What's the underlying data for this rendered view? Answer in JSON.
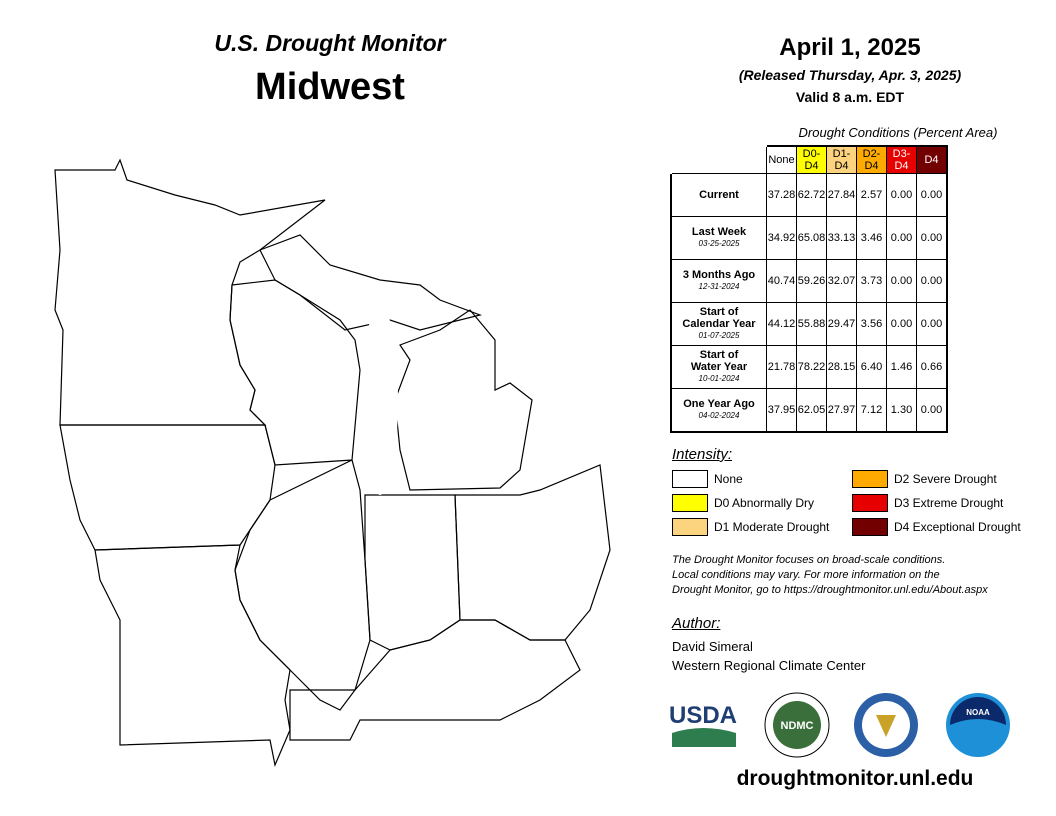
{
  "header": {
    "subtitle": "U.S. Drought Monitor",
    "title": "Midwest"
  },
  "date": {
    "date": "April 1, 2025",
    "released": "(Released Thursday, Apr. 3, 2025)",
    "valid": "Valid 8 a.m. EDT"
  },
  "table": {
    "caption": "Drought Conditions (Percent Area)",
    "columns": [
      {
        "name": "None",
        "color": "#ffffff",
        "text_color": "#000000"
      },
      {
        "name": "D0-D4",
        "color": "#ffff00",
        "text_color": "#000000"
      },
      {
        "name": "D1-D4",
        "color": "#fcd37f",
        "text_color": "#000000"
      },
      {
        "name": "D2-D4",
        "color": "#ffaa00",
        "text_color": "#000000"
      },
      {
        "name": "D3-D4",
        "color": "#e60000",
        "text_color": "#ffffff"
      },
      {
        "name": "D4",
        "color": "#730000",
        "text_color": "#ffffff"
      }
    ],
    "rows": [
      {
        "label": [
          "Current"
        ],
        "values": [
          "37.28",
          "62.72",
          "27.84",
          "2.57",
          "0.00",
          "0.00"
        ]
      },
      {
        "label": [
          "Last Week"
        ],
        "date": "03-25-2025",
        "values": [
          "34.92",
          "65.08",
          "33.13",
          "3.46",
          "0.00",
          "0.00"
        ]
      },
      {
        "label": [
          "3 Months Ago"
        ],
        "date": "12-31-2024",
        "values": [
          "40.74",
          "59.26",
          "32.07",
          "3.73",
          "0.00",
          "0.00"
        ]
      },
      {
        "label": [
          "Start of",
          "Calendar Year"
        ],
        "date": "01-07-2025",
        "values": [
          "44.12",
          "55.88",
          "29.47",
          "3.56",
          "0.00",
          "0.00"
        ]
      },
      {
        "label": [
          "Start of",
          "Water Year"
        ],
        "date": "10-01-2024",
        "values": [
          "21.78",
          "78.22",
          "28.15",
          "6.40",
          "1.46",
          "0.66"
        ]
      },
      {
        "label": [
          "One Year Ago"
        ],
        "date": "04-02-2024",
        "values": [
          "37.95",
          "62.05",
          "27.97",
          "7.12",
          "1.30",
          "0.00"
        ]
      }
    ]
  },
  "legend": {
    "title": "Intensity:",
    "items": [
      {
        "label": "None",
        "color": "#ffffff"
      },
      {
        "label": "D0 Abnormally Dry",
        "color": "#ffff00"
      },
      {
        "label": "D1 Moderate Drought",
        "color": "#fcd37f"
      },
      {
        "label": "D2 Severe Drought",
        "color": "#ffaa00"
      },
      {
        "label": "D3 Extreme Drought",
        "color": "#e60000"
      },
      {
        "label": "D4 Exceptional Drought",
        "color": "#730000"
      }
    ]
  },
  "note": [
    "The Drought Monitor focuses on broad-scale conditions.",
    "Local conditions may vary. For more information on the",
    "Drought Monitor, go to https://droughtmonitor.unl.edu/About.aspx"
  ],
  "author": {
    "title": "Author:",
    "lines": [
      "David Simeral",
      "Western Regional Climate Center"
    ]
  },
  "logos": {
    "usda": "USDA",
    "ndmc": "NDMC",
    "noaa": "NOAA"
  },
  "url": "droughtmonitor.unl.edu"
}
